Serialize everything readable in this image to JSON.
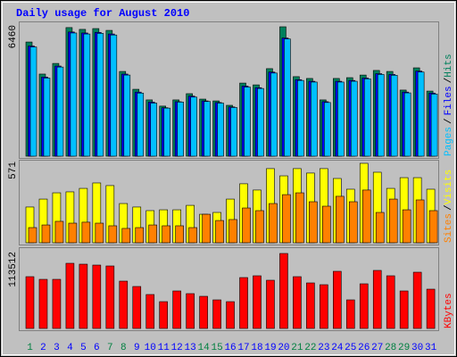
{
  "chart_data": [
    {
      "type": "bar",
      "title": "Daily usage for August 2010",
      "ylim": [
        0,
        6460
      ],
      "yticks": [
        6460
      ],
      "y_label_separator": "/",
      "series": [
        {
          "name": "Hits",
          "color": "#00805c",
          "values": [
            5700,
            4100,
            4630,
            6420,
            6330,
            6370,
            6280,
            4230,
            3340,
            2810,
            2500,
            2810,
            3120,
            2850,
            2760,
            2540,
            3650,
            3560,
            4370,
            6460,
            3970,
            3880,
            2810,
            3880,
            3920,
            4050,
            4280,
            4230,
            3300,
            4410,
            3250
          ]
        },
        {
          "name": "Files",
          "color": "#0000ff",
          "values": [
            5500,
            3950,
            4500,
            6200,
            6150,
            6180,
            6100,
            4100,
            3200,
            2700,
            2420,
            2720,
            3000,
            2760,
            2680,
            2460,
            3500,
            3420,
            4200,
            5900,
            3820,
            3740,
            2720,
            3740,
            3780,
            3900,
            4120,
            4080,
            3200,
            4250,
            3150
          ]
        },
        {
          "name": "Pages",
          "color": "#00c0ff",
          "values": [
            5450,
            3900,
            4450,
            6150,
            6100,
            6130,
            6050,
            4050,
            3150,
            2650,
            2400,
            2700,
            2950,
            2730,
            2650,
            2430,
            3450,
            3380,
            4150,
            5850,
            3780,
            3700,
            2680,
            3700,
            3740,
            3860,
            4080,
            4040,
            3160,
            4200,
            3100
          ]
        }
      ]
    },
    {
      "type": "bar",
      "ylim": [
        0,
        571
      ],
      "yticks": [
        571
      ],
      "y_label_separator": "/",
      "series": [
        {
          "name": "Visits",
          "color": "#ffff00",
          "values": [
            257,
            314,
            359,
            366,
            391,
            430,
            411,
            282,
            257,
            231,
            237,
            237,
            269,
            205,
            218,
            314,
            424,
            379,
            533,
            481,
            533,
            501,
            533,
            462,
            385,
            571,
            507,
            391,
            468,
            468,
            385
          ]
        },
        {
          "name": "Sites",
          "color": "#ff8000",
          "values": [
            109,
            128,
            154,
            141,
            148,
            141,
            122,
            103,
            109,
            128,
            122,
            122,
            109,
            205,
            160,
            167,
            250,
            231,
            282,
            346,
            359,
            295,
            263,
            334,
            295,
            379,
            218,
            314,
            237,
            308,
            231
          ]
        }
      ]
    },
    {
      "type": "bar",
      "ylim": [
        0,
        113512
      ],
      "yticks": [
        113512
      ],
      "categories": [
        "1",
        "2",
        "3",
        "4",
        "5",
        "6",
        "7",
        "8",
        "9",
        "10",
        "11",
        "12",
        "13",
        "14",
        "15",
        "16",
        "17",
        "18",
        "19",
        "20",
        "21",
        "22",
        "23",
        "24",
        "25",
        "26",
        "27",
        "28",
        "29",
        "30",
        "31"
      ],
      "category_colors": [
        "#008040",
        "#0000ff",
        "#0000ff",
        "#0000ff",
        "#0000ff",
        "#0000ff",
        "#008040",
        "#008040",
        "#0000ff",
        "#0000ff",
        "#0000ff",
        "#0000ff",
        "#0000ff",
        "#008040",
        "#008040",
        "#0000ff",
        "#0000ff",
        "#0000ff",
        "#0000ff",
        "#0000ff",
        "#008040",
        "#008040",
        "#0000ff",
        "#0000ff",
        "#0000ff",
        "#0000ff",
        "#0000ff",
        "#008040",
        "#008040",
        "#0000ff",
        "#0000ff"
      ],
      "series": [
        {
          "name": "KBytes",
          "color": "#ff0000",
          "values": [
            78377,
            74323,
            74323,
            98647,
            97296,
            95944,
            94593,
            71620,
            63513,
            51351,
            40540,
            56756,
            52702,
            48648,
            43243,
            40540,
            77026,
            79729,
            72972,
            113512,
            78377,
            68917,
            66215,
            86485,
            43243,
            67566,
            87836,
            79729,
            56756,
            85134,
            59458
          ]
        }
      ]
    }
  ]
}
